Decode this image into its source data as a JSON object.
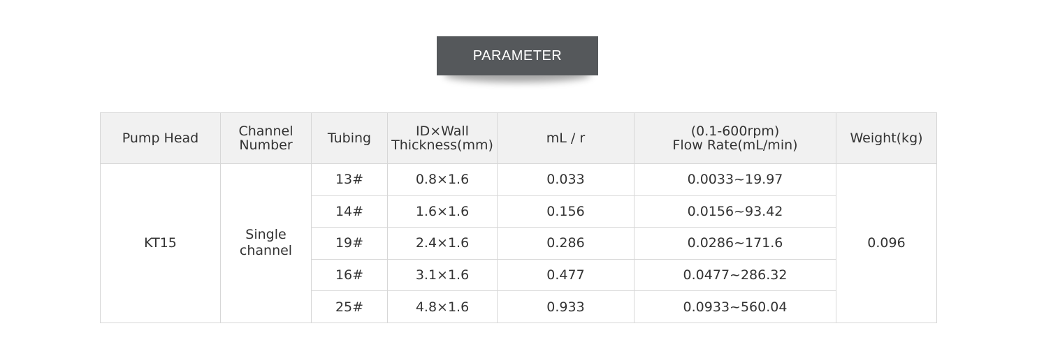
{
  "banner": {
    "title": "PARAMETER"
  },
  "table": {
    "headers": {
      "pump_head": "Pump Head",
      "channel_number_line1": "Channel",
      "channel_number_line2": "Number",
      "tubing": "Tubing",
      "id_wall_line1": "ID×Wall",
      "id_wall_line2": "Thickness(mm)",
      "ml_per_r": "mL / r",
      "flow_rate_line1": "(0.1-600rpm)",
      "flow_rate_line2": "Flow Rate(mL/min)",
      "weight": "Weight(kg)"
    },
    "pump_head": "KT15",
    "channel_line1": "Single",
    "channel_line2": "channel",
    "weight": "0.096",
    "rows": [
      {
        "tubing": "13#",
        "id_wall": "0.8×1.6",
        "ml_r": "0.033",
        "flow_rate": "0.0033~19.97"
      },
      {
        "tubing": "14#",
        "id_wall": "1.6×1.6",
        "ml_r": "0.156",
        "flow_rate": "0.0156~93.42"
      },
      {
        "tubing": "19#",
        "id_wall": "2.4×1.6",
        "ml_r": "0.286",
        "flow_rate": "0.0286~171.6"
      },
      {
        "tubing": "16#",
        "id_wall": "3.1×1.6",
        "ml_r": "0.477",
        "flow_rate": "0.0477~286.32"
      },
      {
        "tubing": "25#",
        "id_wall": "4.8×1.6",
        "ml_r": "0.933",
        "flow_rate": "0.0933~560.04"
      }
    ]
  }
}
